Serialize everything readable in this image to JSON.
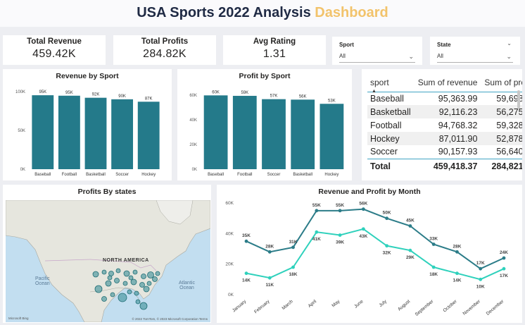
{
  "title": {
    "main": "USA Sports 2022 Analysis",
    "accent": "Dashboard"
  },
  "kpis": [
    {
      "label": "Total Revenue",
      "value": "459.42K"
    },
    {
      "label": "Total Profits",
      "value": "284.82K"
    },
    {
      "label": "Avg Rating",
      "value": "1.31"
    }
  ],
  "slicers": {
    "sport": {
      "label": "Sport",
      "value": "All"
    },
    "state": {
      "label": "State",
      "value": "All"
    }
  },
  "colors": {
    "bar": "#247a8a",
    "profit_line": "#2b7c88",
    "revenue_line": "#2fd1bc",
    "accent": "#f2c36b"
  },
  "revenue_chart": {
    "title": "Revenue by Sport",
    "chart_data": {
      "type": "bar",
      "categories": [
        "Baseball",
        "Football",
        "Basketball",
        "Soccer",
        "Hockey"
      ],
      "values": [
        95363.99,
        94768.32,
        92116.23,
        90157.93,
        87011.9
      ],
      "data_labels": [
        "95K",
        "95K",
        "92K",
        "90K",
        "87K"
      ],
      "y_ticks": [
        "0K",
        "50K",
        "100K"
      ],
      "ylim": [
        0,
        100000
      ]
    }
  },
  "profit_chart": {
    "title": "Profit by Sport",
    "chart_data": {
      "type": "bar",
      "categories": [
        "Baseball",
        "Football",
        "Soccer",
        "Basketball",
        "Hockey"
      ],
      "values": [
        59698,
        59328,
        56640,
        56275,
        52878
      ],
      "data_labels": [
        "60K",
        "59K",
        "57K",
        "56K",
        "53K"
      ],
      "y_ticks": [
        "0K",
        "20K",
        "40K",
        "60K"
      ],
      "ylim": [
        0,
        65000
      ]
    }
  },
  "matrix": {
    "headers": [
      "sport",
      "Sum of revenue",
      "Sum of pro"
    ],
    "rows": [
      [
        "Baseball",
        "95,363.99",
        "59,698."
      ],
      [
        "Basketball",
        "92,116.23",
        "56,275."
      ],
      [
        "Football",
        "94,768.32",
        "59,328."
      ],
      [
        "Hockey",
        "87,011.90",
        "52,878."
      ],
      [
        "Soccer",
        "90,157.93",
        "56,640."
      ]
    ],
    "total": [
      "Total",
      "459,418.37",
      "284,821."
    ]
  },
  "map": {
    "title": "Profits By states",
    "region_label": "NORTH AMERICA",
    "pacific_label": "Pacific\nOcean",
    "atlantic_label": "Atlantic\nOcean",
    "bing_label": "Microsoft Bing",
    "copyright": "© 2022 TomTom, © 2023 Microsoft Corporation  Terms"
  },
  "month_chart": {
    "title": "Revenue and Profit by Month",
    "chart_data": {
      "type": "line",
      "x": [
        "January",
        "February",
        "March",
        "April",
        "May",
        "June",
        "July",
        "August",
        "September",
        "October",
        "November",
        "December"
      ],
      "series": [
        {
          "values": [
            35000,
            28000,
            31000,
            55000,
            55000,
            56000,
            50000,
            45000,
            33000,
            28000,
            17000,
            24000
          ],
          "labels": [
            "35K",
            "28K",
            "31K",
            "55K",
            "55K",
            "56K",
            "50K",
            "45K",
            "33K",
            "28K",
            "17K",
            "24K"
          ]
        },
        {
          "values": [
            14000,
            11000,
            18000,
            41000,
            39000,
            43000,
            32000,
            29000,
            18000,
            14000,
            10000,
            17000
          ],
          "labels": [
            "14K",
            "11K",
            "18K",
            "41K",
            "39K",
            "43K",
            "32K",
            "29K",
            "18K",
            "14K",
            "10K",
            "17K"
          ]
        }
      ],
      "y_ticks": [
        "0K",
        "20K",
        "40K",
        "60K"
      ],
      "ylim": [
        0,
        60000
      ]
    }
  }
}
